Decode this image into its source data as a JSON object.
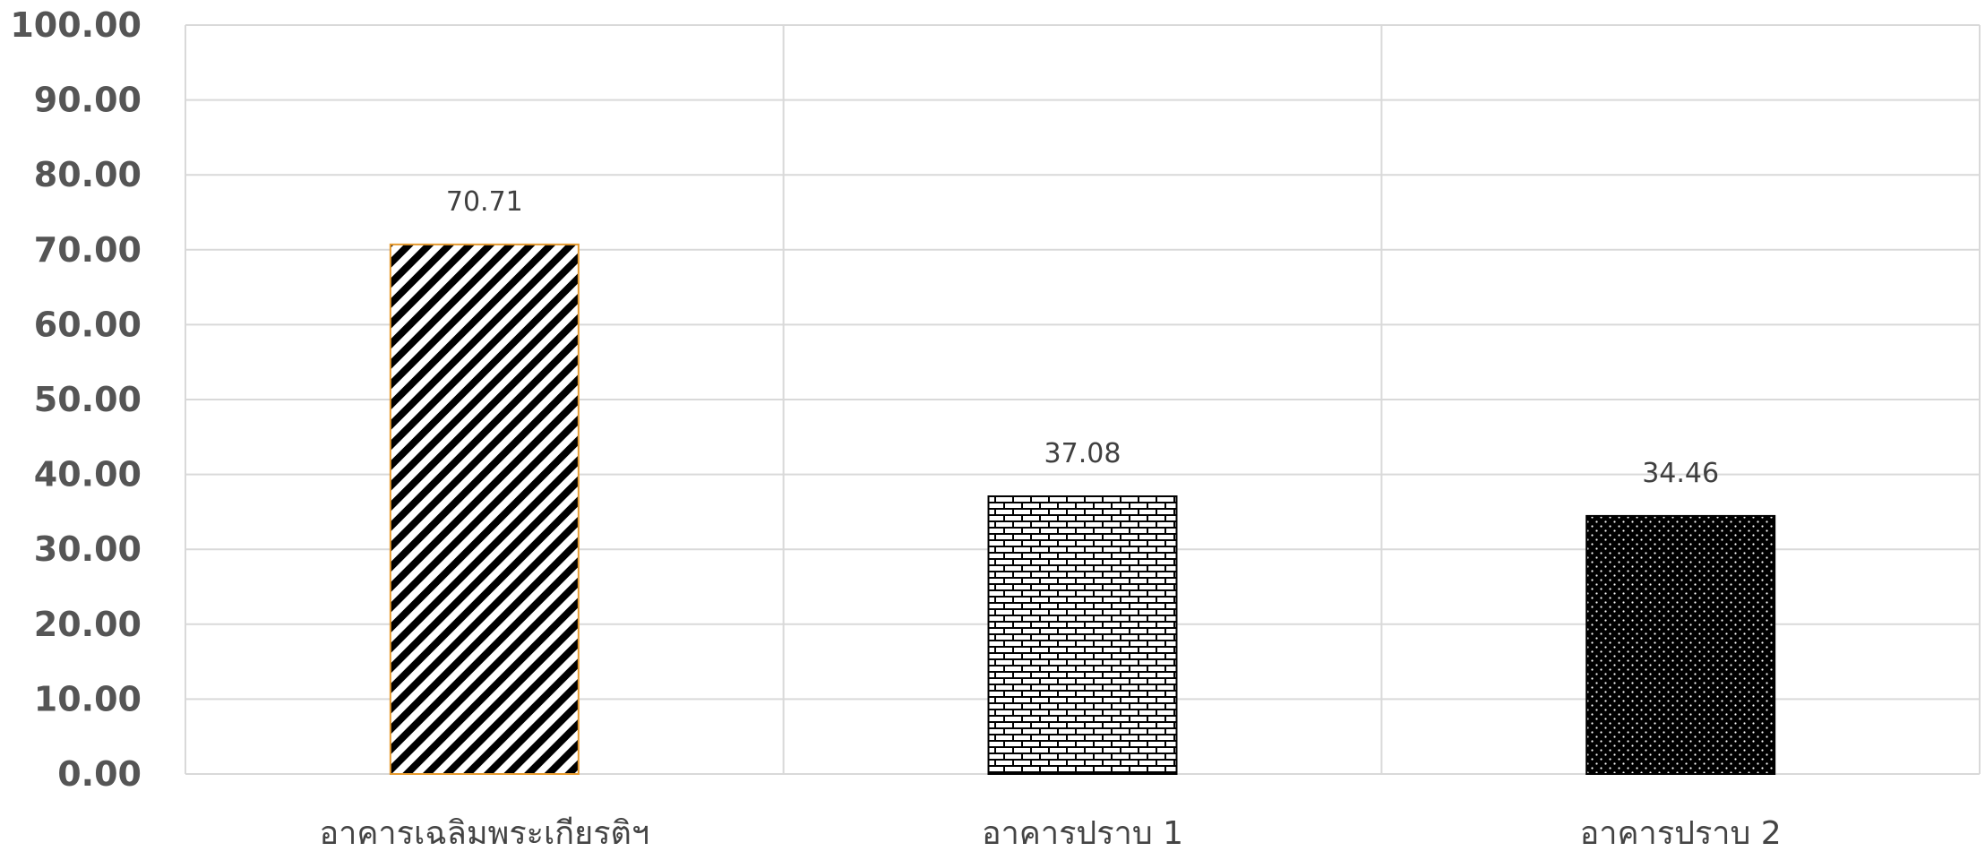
{
  "chart_data": {
    "type": "bar",
    "title": "",
    "xlabel": "",
    "ylabel": "",
    "categories": [
      "อาคารเฉลิมพระเกียรติฯ",
      "อาคารปราบ 1",
      "อาคารปราบ 2"
    ],
    "values": [
      70.71,
      37.08,
      34.46
    ],
    "value_labels": [
      "70.71",
      "37.08",
      "34.46"
    ],
    "ylim": [
      0,
      100
    ],
    "yticks": [
      "0.00",
      "10.00",
      "20.00",
      "30.00",
      "40.00",
      "50.00",
      "60.00",
      "70.00",
      "80.00",
      "90.00",
      "100.00"
    ],
    "grid": true,
    "legend": "none",
    "bar_fills": [
      "diagonal-stripes",
      "brick",
      "dots-on-black"
    ],
    "bar_border_colors": [
      "#e69a2e",
      "#000000",
      "#000000"
    ],
    "gridline_color": "#d9d9d9"
  }
}
